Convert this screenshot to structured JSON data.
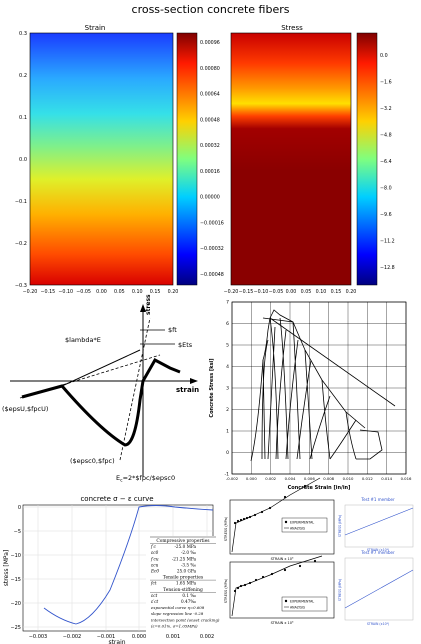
{
  "page_title": "cross-section concrete fibers",
  "strain_panel": {
    "title": "Strain",
    "y_ticks": [
      "0.3",
      "0.2",
      "0.1",
      "0.0",
      "−0.1",
      "−0.2",
      "−0.3"
    ],
    "x_ticks": [
      "−0.20",
      "−0.15",
      "−0.10",
      "−0.05",
      "0.00",
      "0.05",
      "0.10",
      "0.15",
      "0.20"
    ],
    "colorbar_ticks": [
      "0.00096",
      "0.00080",
      "0.00064",
      "0.00048",
      "0.00032",
      "0.00016",
      "0.00000",
      "−0.00016",
      "−0.00032",
      "−0.00048"
    ]
  },
  "stress_panel": {
    "title": "Stress",
    "x_ticks": [
      "−0.20",
      "−0.15",
      "−0.10",
      "−0.05",
      "0.00",
      "0.05",
      "0.10",
      "0.15",
      "0.20"
    ],
    "colorbar_ticks": [
      "0.0",
      "−1.6",
      "−3.2",
      "−4.8",
      "−6.4",
      "−8.0",
      "−9.6",
      "−11.2",
      "−12.8"
    ]
  },
  "schematic": {
    "axis_stress": "stress",
    "axis_strain": "strain",
    "label_lambda": "$lambda*E",
    "label_ft": "$ft",
    "label_ets": "$Ets",
    "label_epsu": "($epsU,$fpcU)",
    "label_epsc0": "($epsc0,$fpc)",
    "label_ec": "E",
    "label_ec_sub": "c",
    "label_ec_rest": "=2*$fpc/$epsc0"
  },
  "cyclic_plot": {
    "ylabel": "Concrete Stress [ksi]",
    "xlabel": "Concrete Strain [in/in]",
    "y_ticks": [
      "7",
      "6",
      "5",
      "4",
      "3",
      "2",
      "1",
      "0",
      "-1"
    ],
    "x_ticks": [
      "-0.002",
      "0.000",
      "0.002",
      "0.004",
      "0.006",
      "0.008",
      "0.010",
      "0.012",
      "0.014",
      "0.016"
    ]
  },
  "curve_panel": {
    "title": "concrete σ − ε curve",
    "ylabel": "stress [MPa]",
    "xlabel": "strain",
    "y_ticks": [
      "0",
      "−5",
      "−10",
      "−15",
      "−20",
      "−25"
    ],
    "x_ticks": [
      "−0.003",
      "−0.002",
      "−0.001",
      "0.000",
      "0.001",
      "0.002"
    ],
    "table": [
      {
        "k": "Compressive properties",
        "v": "",
        "h": true
      },
      {
        "k": "f′c",
        "v": "-25.0 MPa"
      },
      {
        "k": "εc0",
        "v": "-2.0 ‰"
      },
      {
        "k": "f′cu",
        "v": "-21.25 MPa"
      },
      {
        "k": "εcu",
        "v": "-3.5 ‰"
      },
      {
        "k": "Ec0",
        "v": "25.0 GPa"
      },
      {
        "k": "Tensile properties",
        "v": "",
        "h": true
      },
      {
        "k": "fct",
        "v": "1.65 MPa"
      },
      {
        "k": "Tension-stiffening",
        "v": "",
        "h": true
      },
      {
        "k": "εct",
        "v": "0.1 ‰"
      },
      {
        "k": "ε′ct",
        "v": "0.47‰"
      },
      {
        "k": "exponential curve",
        "v": "η=0.608",
        "l": true
      },
      {
        "k": "slope regression line",
        "v": "-0.28",
        "l": true
      },
      {
        "k": "intersection point (onset cracking)",
        "v": "",
        "l": true
      },
      {
        "k": "(ε=0.01%, σ=1.05MPa)",
        "v": "",
        "l": true
      }
    ]
  },
  "test_panels": [
    {
      "title": "Test #1 member",
      "legend": [
        "EXPERIMENTAL",
        "ANALYSIS"
      ],
      "ylabel": "STRESS (MPa)",
      "xlabel": "STRAIN x 10³",
      "right_label": "STRAIN (x10³)",
      "right_ylabel": "STRESS (MPa)"
    },
    {
      "title": "Test #7 member",
      "legend": [
        "EXPERIMENTAL",
        "ANALYSIS"
      ],
      "ylabel": "STRESS (MPa)",
      "xlabel": "STRAIN x 10³",
      "right_label": "STRAIN (x10³)",
      "right_ylabel": "STRESS (MPa)"
    }
  ],
  "colors": {
    "curve_blue": "#3355cc",
    "bar_red": "#9b0000",
    "bar_blue": "#1a237e"
  }
}
